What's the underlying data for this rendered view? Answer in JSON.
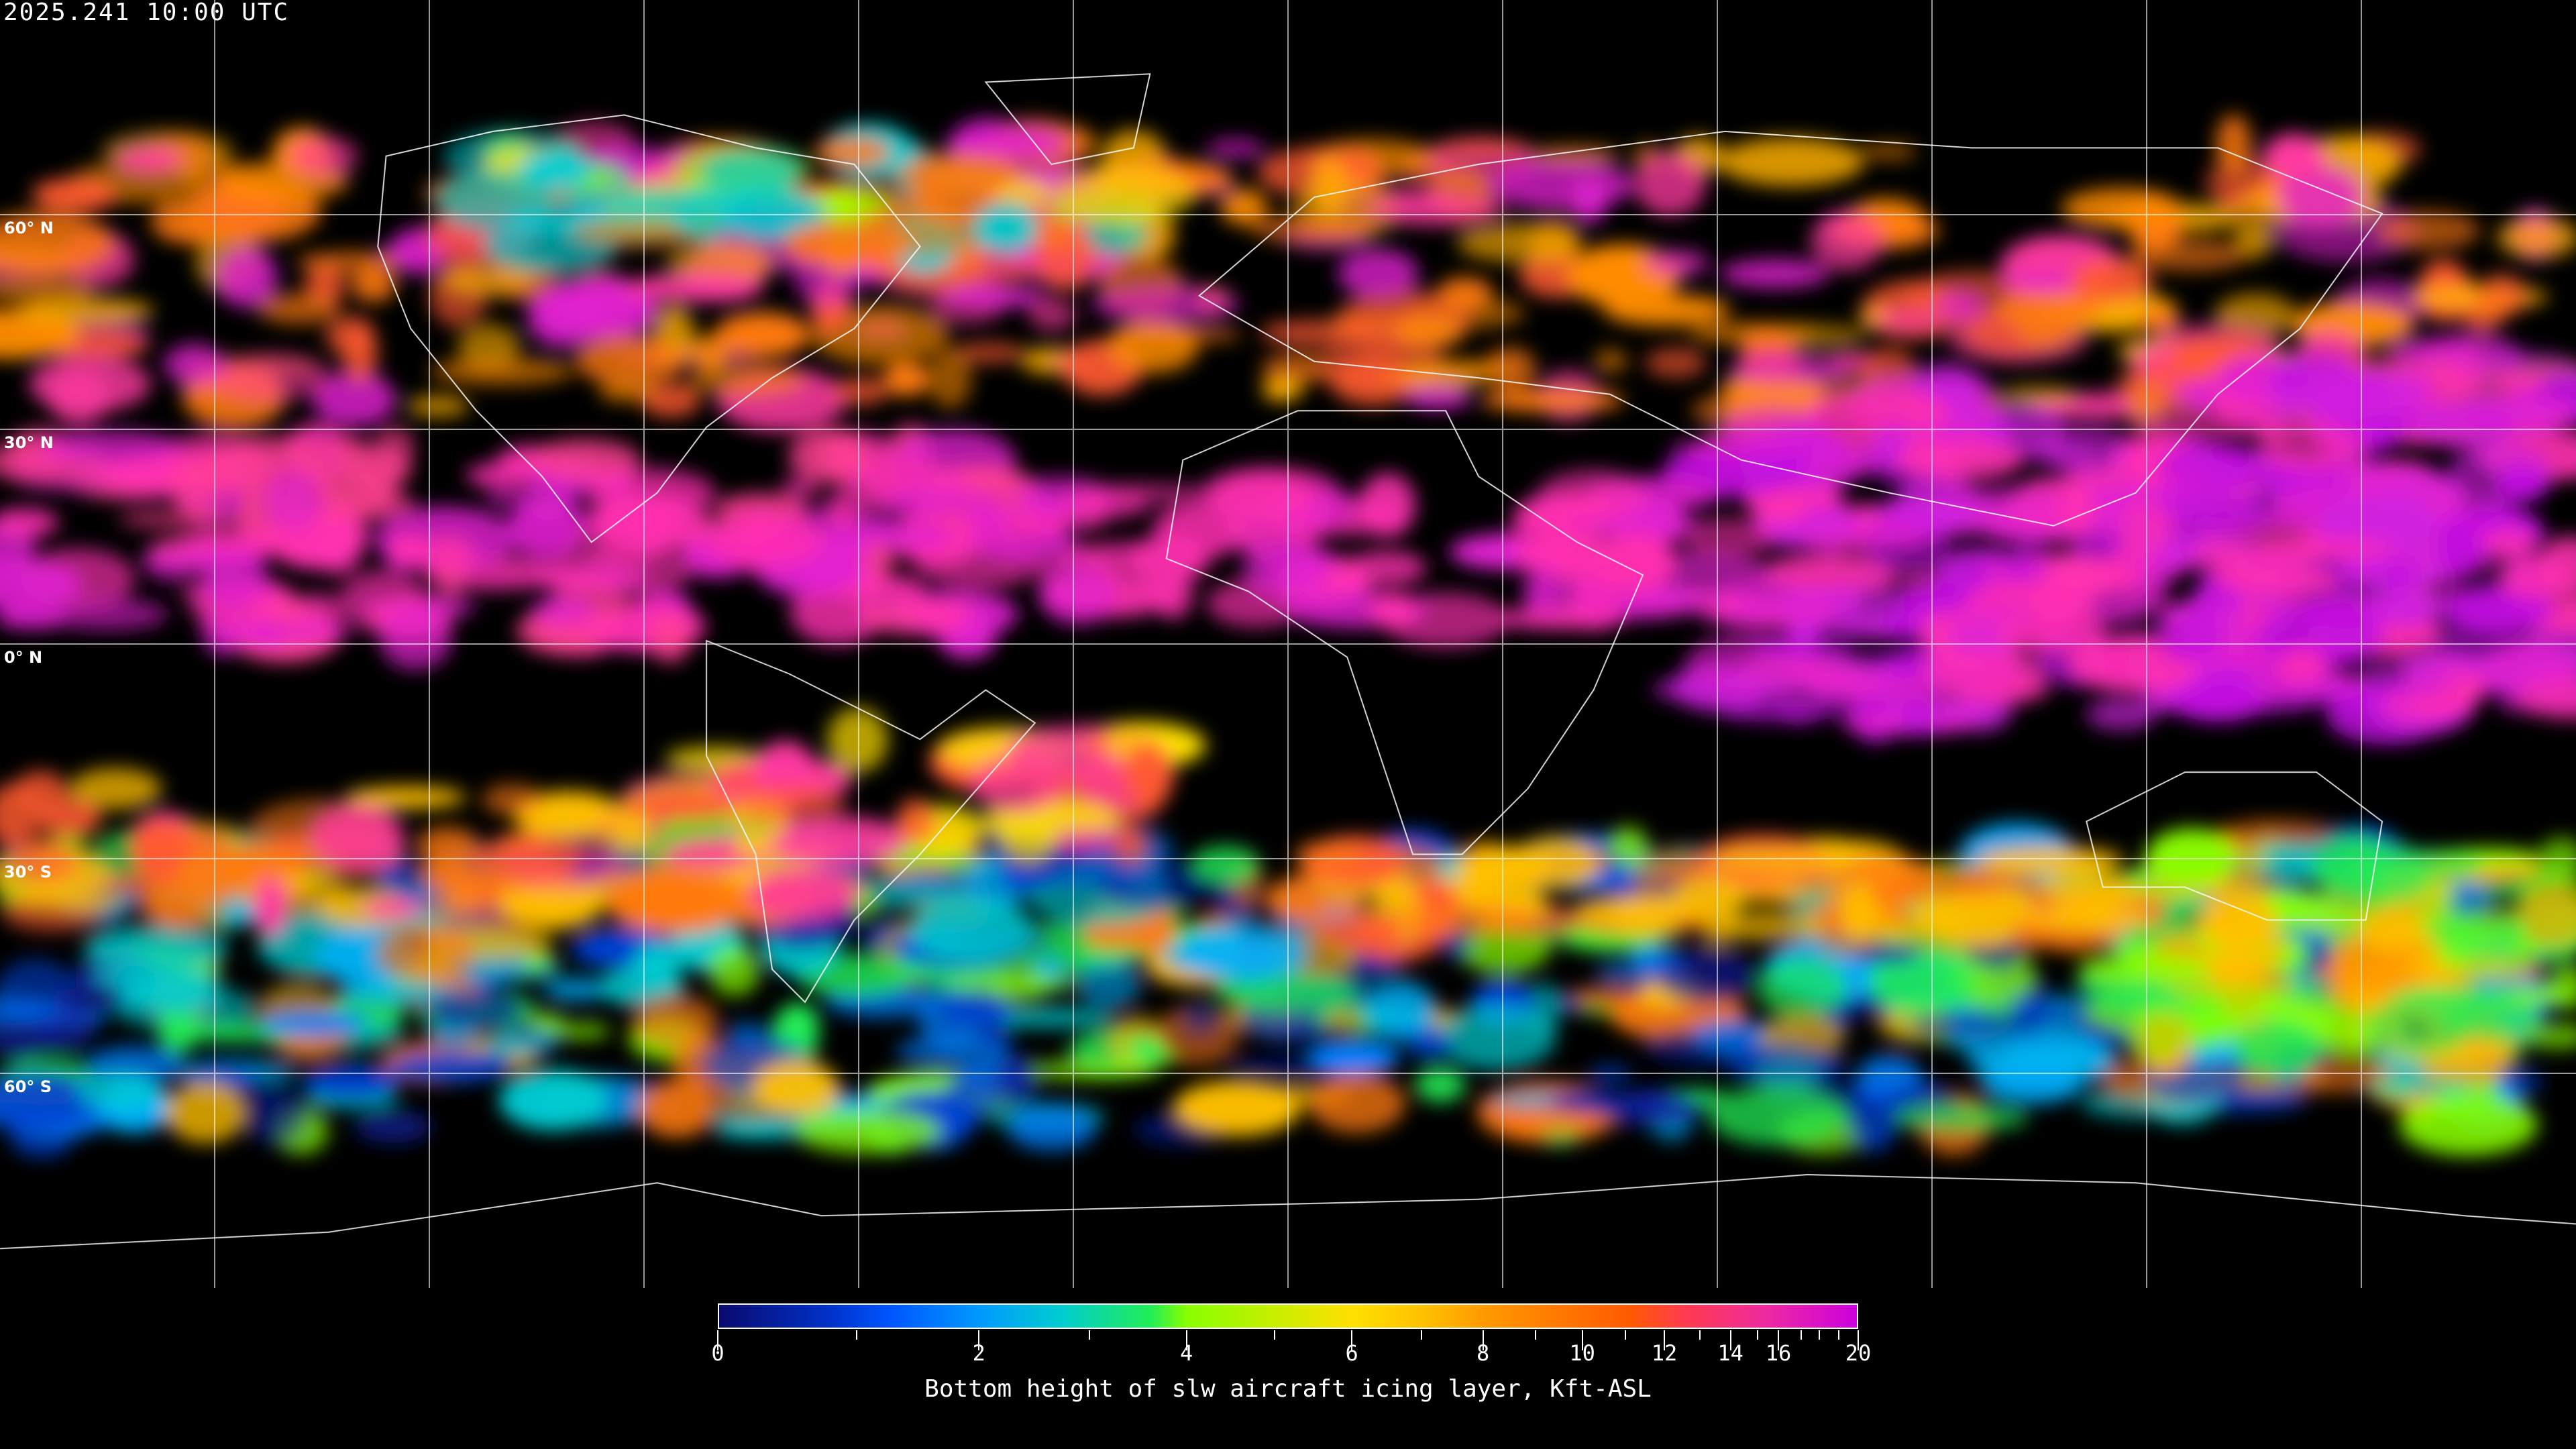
{
  "title": "2025.241 10:00 UTC",
  "map": {
    "projection": "equirectangular",
    "grid_lon_step_deg": 30,
    "grid_lat_step_deg": 30,
    "lat_labels": [
      "60° N",
      "30° N",
      "0° N",
      "30° S",
      "60° S"
    ],
    "grid_color": "#ffffff",
    "coastline_color": "#ffffff",
    "background": "#000000"
  },
  "colorbar": {
    "title": "Bottom height of slw aircraft icing layer, Kft-ASL",
    "min": 0,
    "max": 20,
    "major_ticks": [
      "0",
      "2",
      "4",
      "6",
      "8",
      "10",
      "12",
      "14",
      "16",
      "20"
    ],
    "minor_ticks": [
      1,
      3,
      5,
      7,
      9,
      11,
      13,
      15,
      17,
      18,
      19
    ],
    "colors": [
      "#0a0a6e",
      "#0055ff",
      "#00ccd0",
      "#88ff00",
      "#ffe000",
      "#ff9a00",
      "#ff5a00",
      "#cc00dd"
    ]
  }
}
